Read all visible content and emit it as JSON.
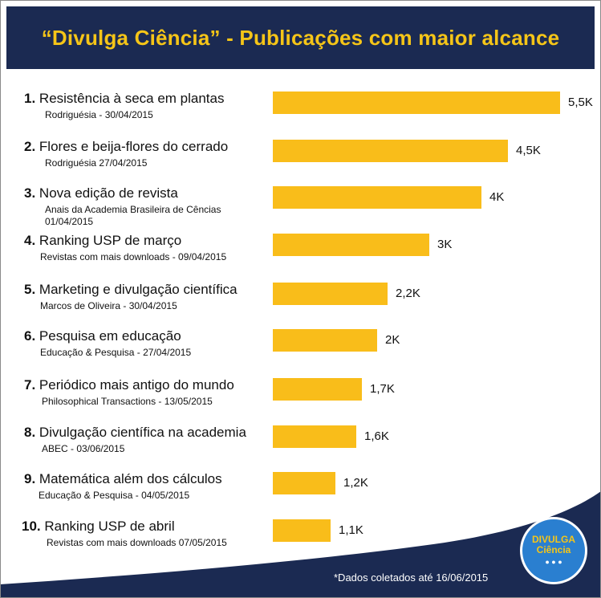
{
  "title": "“Divulga Ciência” - Publicações com maior alcance",
  "footnote": "*Dados coletados até 16/06/2015",
  "logo": {
    "line1": "DIVULGA",
    "line2": "Ciência"
  },
  "colors": {
    "header": "#1b2a52",
    "title": "#f5c518",
    "bar": "#f9bd1a",
    "wave": "#1b2a52",
    "logo": "#2a7fd0"
  },
  "chart_data": {
    "type": "bar",
    "orientation": "horizontal",
    "unit": "K",
    "items": [
      {
        "rank": "1.",
        "title": "Resistência à seca em plantas",
        "subtitle": "Rodriguésia - 30/04/2015",
        "value": 5.5,
        "value_label": "5,5K"
      },
      {
        "rank": "2.",
        "title": "Flores e beija-flores do cerrado",
        "subtitle": "Rodriguésia 27/04/2015",
        "value": 4.5,
        "value_label": "4,5K"
      },
      {
        "rank": "3.",
        "title": "Nova edição de revista",
        "subtitle": "Anais da Academia Brasileira de Cências\n01/04/2015",
        "value": 4,
        "value_label": "4K"
      },
      {
        "rank": "4.",
        "title": "Ranking USP de março",
        "subtitle": "Revistas com mais downloads - 09/04/2015",
        "value": 3,
        "value_label": "3K"
      },
      {
        "rank": "5.",
        "title": "Marketing e divulgação científica",
        "subtitle": "Marcos de Oliveira - 30/04/2015",
        "value": 2.2,
        "value_label": "2,2K"
      },
      {
        "rank": "6.",
        "title": "Pesquisa em educação",
        "subtitle": "Educação & Pesquisa - 27/04/2015",
        "value": 2,
        "value_label": "2K"
      },
      {
        "rank": "7.",
        "title": "Periódico mais antigo do mundo",
        "subtitle": "Philosophical Transactions - 13/05/2015",
        "value": 1.7,
        "value_label": "1,7K"
      },
      {
        "rank": "8.",
        "title": "Divulgação científica na academia",
        "subtitle": "ABEC - 03/06/2015",
        "value": 1.6,
        "value_label": "1,6K"
      },
      {
        "rank": "9.",
        "title": "Matemática além dos cálculos",
        "subtitle": "Educação & Pesquisa - 04/05/2015",
        "value": 1.2,
        "value_label": "1,2K"
      },
      {
        "rank": "10.",
        "title": "Ranking USP de abril",
        "subtitle": "Revistas com mais downloads 07/05/2015",
        "value": 1.1,
        "value_label": "1,1K"
      }
    ]
  }
}
